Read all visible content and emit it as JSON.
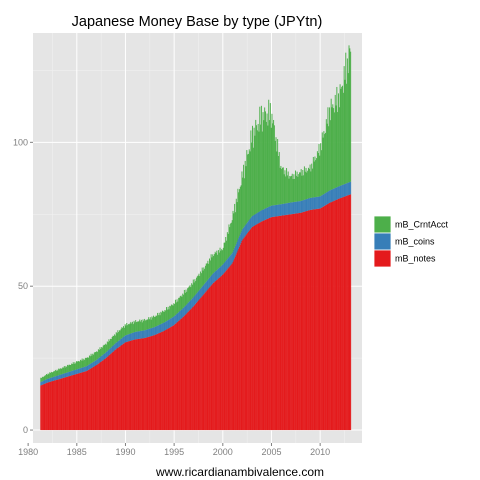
{
  "chart_data": {
    "type": "area",
    "title": "Japanese Money Base by type (JPYtn)",
    "xlabel": "www.ricardianambivalence.com",
    "ylabel": "",
    "xlim": [
      1980.5,
      2014.3
    ],
    "ylim": [
      -4.5,
      138
    ],
    "xticks": [
      1980,
      1985,
      1990,
      1995,
      2000,
      2005,
      2010
    ],
    "yticks": [
      0,
      50,
      100
    ],
    "grid": true,
    "stacked": true,
    "legend_position": "right",
    "x": [
      1981.3,
      1982,
      1983,
      1984,
      1985,
      1986,
      1987,
      1988,
      1989,
      1990,
      1991,
      1992,
      1993,
      1994,
      1995,
      1996,
      1997,
      1998,
      1999,
      2000,
      2001,
      2002,
      2003,
      2004,
      2005,
      2006,
      2007,
      2008,
      2009,
      2010,
      2011,
      2012,
      2013.2
    ],
    "series": [
      {
        "name": "mB_notes",
        "color": "#e41a1c",
        "values": [
          15.5,
          16.5,
          17.5,
          18.5,
          19.5,
          20.5,
          22.5,
          25,
          28,
          30.5,
          31.5,
          32,
          33,
          34.5,
          36.5,
          39.5,
          43,
          47,
          51,
          54,
          58,
          66,
          70.5,
          72.5,
          74,
          74.5,
          75,
          75.5,
          76.5,
          77,
          79,
          80.5,
          82
        ]
      },
      {
        "name": "mB_coins",
        "color": "#377eb8",
        "values": [
          1.2,
          1.3,
          1.4,
          1.5,
          1.6,
          1.7,
          1.8,
          2.0,
          2.2,
          2.4,
          2.6,
          2.7,
          2.8,
          2.9,
          3.0,
          3.1,
          3.2,
          3.3,
          3.4,
          3.5,
          3.6,
          3.7,
          3.8,
          3.9,
          4.0,
          4.0,
          4.1,
          4.1,
          4.2,
          4.2,
          4.3,
          4.3,
          4.4
        ]
      },
      {
        "name": "mB_CrntAcct",
        "color": "#4daf4a",
        "values": [
          1.3,
          1.7,
          2.0,
          2.3,
          2.6,
          2.8,
          2.9,
          3.0,
          3.3,
          3.6,
          3.6,
          3.5,
          3.7,
          4.1,
          4.5,
          5.0,
          5.3,
          5.7,
          6.6,
          5.5,
          12.4,
          18.3,
          27.7,
          32.6,
          32.0,
          12.5,
          8.9,
          9.9,
          10.3,
          16.8,
          27.7,
          31.2,
          46.6
        ]
      }
    ]
  }
}
